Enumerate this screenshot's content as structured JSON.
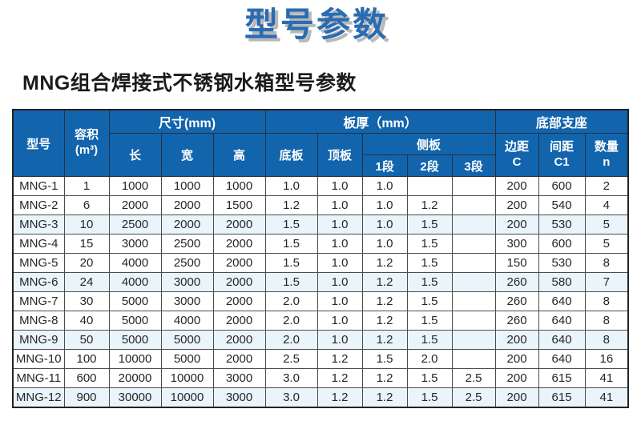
{
  "page": {
    "title": "型号参数",
    "subtitle": "MNG组合焊接式不锈钢水箱型号参数"
  },
  "colors": {
    "title_blue": "#2a6cb3",
    "title_shadow": "#b9b9b9",
    "header_blue": "#1264ad",
    "alt_row": "#e9f4fb",
    "border_dark": "#222222"
  },
  "table": {
    "header": {
      "model": "型号",
      "volume_line1": "容积",
      "volume_line2": "(m³)",
      "size_group": "尺寸(mm)",
      "length": "长",
      "width": "宽",
      "height": "高",
      "thickness_group": "板厚（mm）",
      "bottom_plate": "底板",
      "top_plate": "顶板",
      "side_plate_group": "侧板",
      "seg1": "1段",
      "seg2": "2段",
      "seg3": "3段",
      "support_group": "底部支座",
      "edge_line1": "边距",
      "edge_line2": "C",
      "spacing_line1": "间距",
      "spacing_line2": "C1",
      "qty_line1": "数量",
      "qty_line2": "n"
    },
    "rows": [
      [
        "MNG-1",
        "1",
        "1000",
        "1000",
        "1000",
        "1.0",
        "1.0",
        "1.0",
        "",
        "",
        "200",
        "600",
        "2"
      ],
      [
        "MNG-2",
        "6",
        "2000",
        "2000",
        "1500",
        "1.2",
        "1.0",
        "1.0",
        "1.2",
        "",
        "200",
        "540",
        "4"
      ],
      [
        "MNG-3",
        "10",
        "2500",
        "2000",
        "2000",
        "1.5",
        "1.0",
        "1.0",
        "1.5",
        "",
        "200",
        "530",
        "5"
      ],
      [
        "MNG-4",
        "15",
        "3000",
        "2500",
        "2000",
        "1.5",
        "1.0",
        "1.0",
        "1.5",
        "",
        "300",
        "600",
        "5"
      ],
      [
        "MNG-5",
        "20",
        "4000",
        "2500",
        "2000",
        "1.5",
        "1.0",
        "1.2",
        "1.5",
        "",
        "150",
        "530",
        "8"
      ],
      [
        "MNG-6",
        "24",
        "4000",
        "3000",
        "2000",
        "1.5",
        "1.0",
        "1.2",
        "1.5",
        "",
        "260",
        "580",
        "7"
      ],
      [
        "MNG-7",
        "30",
        "5000",
        "3000",
        "2000",
        "2.0",
        "1.0",
        "1.2",
        "1.5",
        "",
        "260",
        "640",
        "8"
      ],
      [
        "MNG-8",
        "40",
        "5000",
        "4000",
        "2000",
        "2.0",
        "1.0",
        "1.2",
        "1.5",
        "",
        "260",
        "640",
        "8"
      ],
      [
        "MNG-9",
        "50",
        "5000",
        "5000",
        "2000",
        "2.0",
        "1.0",
        "1.2",
        "1.5",
        "",
        "200",
        "640",
        "8"
      ],
      [
        "MNG-10",
        "100",
        "10000",
        "5000",
        "2000",
        "2.5",
        "1.2",
        "1.5",
        "2.0",
        "",
        "200",
        "640",
        "16"
      ],
      [
        "MNG-11",
        "600",
        "20000",
        "10000",
        "3000",
        "3.0",
        "1.2",
        "1.2",
        "1.5",
        "2.5",
        "200",
        "615",
        "41"
      ],
      [
        "MNG-12",
        "900",
        "30000",
        "10000",
        "3000",
        "3.0",
        "1.2",
        "1.2",
        "1.5",
        "2.5",
        "200",
        "615",
        "41"
      ]
    ],
    "highlighted_every_nth_row": 3
  }
}
